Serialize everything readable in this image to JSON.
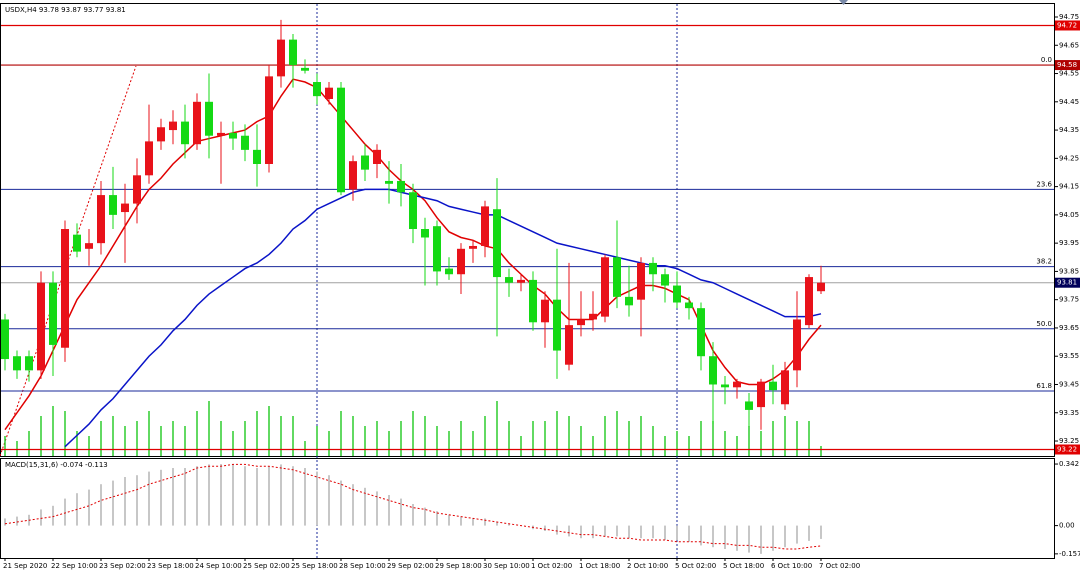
{
  "chart_data": {
    "type": "candlestick",
    "title": "USDX,H4  93.78 93.87 93.77 93.81",
    "categories": [
      "21 Sep 2020",
      null,
      null,
      null,
      "22 Sep 10:00",
      null,
      null,
      null,
      "23 Sep 02:00",
      null,
      null,
      null,
      "23 Sep 18:00",
      null,
      null,
      null,
      "24 Sep 10:00",
      null,
      null,
      null,
      "25 Sep 02:00",
      null,
      null,
      null,
      "25 Sep 18:00",
      null,
      null,
      null,
      "28 Sep 10:00",
      null,
      null,
      null,
      "29 Sep 02:00",
      null,
      null,
      null,
      "29 Sep 18:00",
      null,
      null,
      null,
      "30 Sep 10:00",
      null,
      null,
      null,
      "1 Oct 02:00",
      null,
      null,
      null,
      "1 Oct 18:00",
      null,
      null,
      null,
      "2 Oct 10:00",
      null,
      null,
      null,
      "5 Oct 02:00",
      null,
      null,
      null,
      "5 Oct 18:00",
      null,
      null,
      null,
      "6 Oct 10:00",
      null,
      null,
      null,
      "7 Oct 02:00"
    ],
    "open": [
      93.68,
      93.55,
      93.55,
      93.5,
      93.81,
      93.58,
      93.98,
      93.93,
      93.95,
      94.12,
      94.06,
      94.09,
      94.19,
      94.31,
      94.35,
      94.38,
      94.3,
      94.45,
      94.33,
      94.34,
      94.33,
      94.28,
      94.23,
      94.54,
      94.67,
      94.57,
      94.52,
      94.46,
      94.5,
      94.14,
      94.26,
      94.23,
      94.17,
      94.17,
      94.13,
      94.0,
      94.01,
      93.86,
      93.84,
      93.93,
      93.94,
      94.07,
      93.83,
      93.81,
      93.82,
      93.67,
      93.75,
      93.52,
      93.66,
      93.68,
      93.69,
      93.9,
      93.76,
      93.75,
      93.88,
      93.84,
      93.8,
      93.74,
      93.72,
      93.55,
      93.45,
      93.44,
      93.39,
      93.37,
      93.46,
      93.38,
      93.5,
      93.66,
      93.78
    ],
    "high": [
      93.7,
      93.57,
      93.57,
      93.85,
      93.85,
      94.03,
      94.02,
      94.0,
      94.17,
      94.22,
      94.16,
      94.25,
      94.44,
      94.39,
      94.42,
      94.44,
      94.48,
      94.55,
      94.38,
      94.38,
      94.37,
      94.37,
      94.58,
      94.74,
      94.69,
      94.6,
      94.55,
      94.52,
      94.52,
      94.26,
      94.3,
      94.3,
      94.24,
      94.23,
      94.16,
      94.04,
      94.03,
      93.9,
      93.95,
      93.96,
      94.1,
      94.18,
      93.86,
      93.84,
      93.85,
      93.78,
      93.93,
      93.88,
      93.78,
      93.78,
      93.91,
      94.03,
      93.87,
      93.9,
      93.9,
      93.86,
      93.85,
      93.76,
      93.74,
      93.6,
      93.48,
      93.47,
      93.42,
      93.47,
      93.52,
      93.53,
      93.78,
      93.84,
      93.87
    ],
    "low": [
      93.5,
      93.47,
      93.46,
      93.47,
      93.48,
      93.53,
      93.9,
      93.87,
      93.91,
      94.0,
      93.88,
      94.02,
      94.16,
      94.28,
      94.3,
      94.25,
      94.28,
      94.25,
      94.16,
      94.28,
      94.24,
      94.15,
      94.2,
      94.5,
      94.5,
      94.55,
      94.44,
      94.44,
      94.12,
      94.1,
      94.17,
      94.18,
      94.09,
      94.08,
      93.95,
      93.8,
      93.8,
      93.82,
      93.77,
      93.88,
      93.9,
      93.62,
      93.76,
      93.78,
      93.64,
      93.58,
      93.47,
      93.5,
      93.62,
      93.64,
      93.67,
      93.72,
      93.69,
      93.62,
      93.78,
      93.74,
      93.72,
      93.68,
      93.5,
      93.31,
      93.38,
      93.4,
      93.3,
      93.29,
      93.38,
      93.36,
      93.44,
      93.65,
      93.77
    ],
    "close": [
      93.54,
      93.5,
      93.5,
      93.81,
      93.59,
      94.0,
      93.92,
      93.95,
      94.12,
      94.05,
      94.09,
      94.19,
      94.31,
      94.36,
      94.38,
      94.3,
      94.45,
      94.33,
      94.34,
      94.32,
      94.28,
      94.23,
      94.54,
      94.67,
      94.58,
      94.56,
      94.47,
      94.5,
      94.13,
      94.24,
      94.21,
      94.28,
      94.16,
      94.13,
      94.0,
      93.97,
      93.85,
      93.84,
      93.93,
      93.94,
      94.08,
      93.83,
      93.81,
      93.82,
      93.67,
      93.75,
      93.57,
      93.66,
      93.68,
      93.7,
      93.9,
      93.76,
      93.73,
      93.88,
      93.84,
      93.8,
      93.74,
      93.72,
      93.55,
      93.45,
      93.44,
      93.46,
      93.36,
      93.46,
      93.43,
      93.5,
      93.68,
      93.83,
      93.81
    ],
    "up_color": "#e8121a",
    "down_color": "#14d914",
    "overlays": [
      {
        "color": "#e00000",
        "values": [
          93.29,
          93.35,
          93.41,
          93.48,
          93.57,
          93.66,
          93.75,
          93.81,
          93.87,
          93.94,
          94.01,
          94.08,
          94.14,
          94.18,
          94.23,
          94.27,
          94.31,
          94.32,
          94.33,
          94.34,
          94.35,
          94.38,
          94.4,
          94.47,
          94.53,
          94.52,
          94.5,
          94.45,
          94.4,
          94.35,
          94.3,
          94.26,
          94.21,
          94.17,
          94.14,
          94.1,
          94.04,
          93.99,
          93.97,
          93.96,
          93.94,
          93.93,
          93.88,
          93.84,
          93.8,
          93.77,
          93.72,
          93.68,
          93.68,
          93.68,
          93.72,
          93.76,
          93.78,
          93.8,
          93.8,
          93.79,
          93.77,
          93.75,
          93.66,
          93.57,
          93.51,
          93.46,
          93.45,
          93.45,
          93.47,
          93.5,
          93.55,
          93.61,
          93.66
        ]
      },
      {
        "color": "#0a14c8",
        "values": [
          null,
          null,
          null,
          null,
          null,
          93.23,
          93.27,
          93.31,
          93.36,
          93.4,
          93.45,
          93.5,
          93.55,
          93.59,
          93.64,
          93.68,
          93.73,
          93.77,
          93.8,
          93.83,
          93.86,
          93.88,
          93.91,
          93.95,
          94.0,
          94.03,
          94.07,
          94.09,
          94.11,
          94.13,
          94.14,
          94.14,
          94.14,
          94.13,
          94.12,
          94.11,
          94.1,
          94.08,
          94.07,
          94.06,
          94.05,
          94.05,
          94.03,
          94.01,
          93.99,
          93.97,
          93.95,
          93.94,
          93.93,
          93.92,
          93.91,
          93.9,
          93.89,
          93.88,
          93.87,
          93.87,
          93.86,
          93.84,
          93.82,
          93.81,
          93.79,
          93.77,
          93.75,
          93.73,
          93.71,
          93.69,
          93.69,
          93.69,
          93.7
        ]
      }
    ],
    "volume": {
      "color": "#2ecc2e",
      "values": [
        20,
        15,
        25,
        40,
        50,
        45,
        25,
        20,
        35,
        40,
        30,
        35,
        45,
        30,
        35,
        30,
        45,
        55,
        35,
        25,
        35,
        45,
        50,
        40,
        40,
        15,
        30,
        25,
        45,
        40,
        30,
        35,
        25,
        35,
        45,
        40,
        30,
        25,
        35,
        25,
        40,
        55,
        35,
        20,
        35,
        35,
        45,
        40,
        30,
        20,
        40,
        45,
        35,
        40,
        30,
        20,
        25,
        20,
        35,
        35,
        25,
        20,
        30,
        25,
        35,
        40,
        35,
        35,
        10
      ]
    },
    "ylim": [
      93.197,
      94.796
    ],
    "yticks": [
      94.75,
      94.65,
      94.55,
      94.45,
      94.35,
      94.25,
      94.15,
      94.05,
      93.95,
      93.85,
      93.75,
      93.65,
      93.55,
      93.45,
      93.35,
      93.25
    ],
    "levels": [
      {
        "value": 94.72,
        "color": "#e00000",
        "boxed": true
      },
      {
        "value": 94.58,
        "color": "#b00000",
        "boxed": true,
        "label": "0.0"
      },
      {
        "value": 94.14,
        "color": "#1a2a9a",
        "label": "23.6"
      },
      {
        "value": 93.867,
        "color": "#1a2a9a",
        "label": "38.2"
      },
      {
        "value": 93.81,
        "color": "#a0a0a0",
        "boxed": true,
        "box_color": "#00005a"
      },
      {
        "value": 93.647,
        "color": "#1a2a9a",
        "label": "50.0"
      },
      {
        "value": 93.427,
        "color": "#1a2a9a",
        "label": "61.8"
      },
      {
        "value": 93.22,
        "color": "#e00000",
        "boxed": true
      }
    ],
    "macd": {
      "title": "MACD(15,31,6) -0.074 -0.113",
      "histogram": [
        0.04,
        0.05,
        0.06,
        0.09,
        0.11,
        0.15,
        0.18,
        0.2,
        0.23,
        0.25,
        0.27,
        0.28,
        0.3,
        0.31,
        0.32,
        0.32,
        0.33,
        0.34,
        0.342,
        0.34,
        0.33,
        0.32,
        0.33,
        0.34,
        0.33,
        0.32,
        0.3,
        0.28,
        0.25,
        0.23,
        0.21,
        0.19,
        0.17,
        0.15,
        0.12,
        0.1,
        0.08,
        0.06,
        0.05,
        0.04,
        0.04,
        0.02,
        0.01,
        0.0,
        -0.02,
        -0.03,
        -0.05,
        -0.06,
        -0.07,
        -0.07,
        -0.06,
        -0.06,
        -0.07,
        -0.07,
        -0.07,
        -0.08,
        -0.08,
        -0.09,
        -0.11,
        -0.12,
        -0.13,
        -0.14,
        -0.15,
        -0.157,
        -0.14,
        -0.12,
        -0.1,
        -0.085,
        -0.074
      ],
      "signal": [
        0.01,
        0.02,
        0.03,
        0.04,
        0.05,
        0.07,
        0.09,
        0.11,
        0.14,
        0.16,
        0.18,
        0.2,
        0.23,
        0.25,
        0.27,
        0.29,
        0.32,
        0.33,
        0.33,
        0.34,
        0.34,
        0.33,
        0.33,
        0.32,
        0.31,
        0.29,
        0.27,
        0.25,
        0.23,
        0.2,
        0.18,
        0.16,
        0.14,
        0.12,
        0.1,
        0.09,
        0.07,
        0.06,
        0.05,
        0.04,
        0.03,
        0.02,
        0.01,
        0.0,
        -0.01,
        -0.02,
        -0.03,
        -0.04,
        -0.05,
        -0.05,
        -0.06,
        -0.07,
        -0.07,
        -0.08,
        -0.08,
        -0.08,
        -0.09,
        -0.09,
        -0.09,
        -0.1,
        -0.1,
        -0.11,
        -0.11,
        -0.12,
        -0.12,
        -0.13,
        -0.13,
        -0.12,
        -0.113
      ],
      "hist_color": "#b4b4b4",
      "signal_color": "#e00000",
      "ylim": [
        -0.18,
        0.37
      ],
      "yticks": [
        0.342,
        {
          "value": 0,
          "label": "0.00"
        },
        -0.157
      ]
    }
  }
}
